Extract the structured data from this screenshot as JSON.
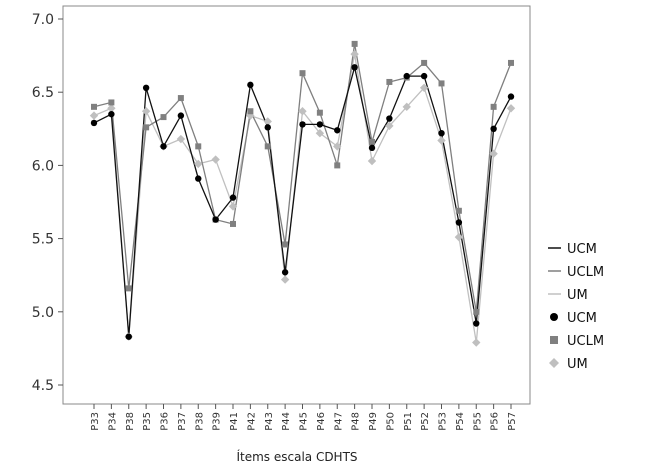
{
  "chart_data": {
    "type": "line",
    "title": "",
    "xlabel": "Ítems escala CDHTS",
    "ylabel": "",
    "ylim": [
      4.5,
      7.0
    ],
    "yticks": [
      "4.5",
      "5.0",
      "5.5",
      "6.0",
      "6.5",
      "7.0"
    ],
    "grid": false,
    "legend_position": "right",
    "categories": [
      "P33",
      "P34",
      "P38",
      "P35",
      "P36",
      "P37",
      "P38",
      "P39",
      "P41",
      "P42",
      "P43",
      "P44",
      "P45",
      "P46",
      "P47",
      "P48",
      "P49",
      "P50",
      "P51",
      "P52",
      "P53",
      "P54",
      "P55",
      "P56",
      "P57"
    ],
    "series": [
      {
        "name": "UCM",
        "marker": "circle",
        "line_color": "#111111",
        "marker_color": "#000000",
        "values": [
          6.29,
          6.35,
          4.83,
          6.53,
          6.13,
          6.34,
          5.91,
          5.63,
          5.78,
          6.55,
          6.26,
          5.27,
          6.28,
          6.28,
          6.24,
          6.67,
          6.12,
          6.32,
          6.61,
          6.61,
          6.22,
          5.61,
          4.92,
          6.25,
          6.47
        ]
      },
      {
        "name": "UCLM",
        "marker": "square",
        "line_color": "#7f7f7f",
        "marker_color": "#808080",
        "values": [
          6.4,
          6.43,
          5.16,
          6.26,
          6.33,
          6.46,
          6.13,
          5.63,
          5.6,
          6.37,
          6.13,
          5.46,
          6.63,
          6.36,
          6.0,
          6.83,
          6.16,
          6.57,
          6.6,
          6.7,
          6.56,
          5.69,
          5.0,
          6.4,
          6.7
        ]
      },
      {
        "name": "UM",
        "marker": "diamond",
        "line_color": "#c0c0c0",
        "marker_color": "#bfbfbf",
        "values": [
          6.34,
          6.39,
          4.83,
          6.37,
          6.13,
          6.18,
          6.01,
          6.04,
          5.72,
          6.34,
          6.3,
          5.22,
          6.37,
          6.22,
          6.13,
          6.76,
          6.03,
          6.27,
          6.4,
          6.53,
          6.17,
          5.51,
          4.79,
          6.08,
          6.39
        ]
      }
    ],
    "legend": [
      "UCM",
      "UCLM",
      "UM",
      "UCM",
      "UCLM",
      "UM"
    ]
  }
}
